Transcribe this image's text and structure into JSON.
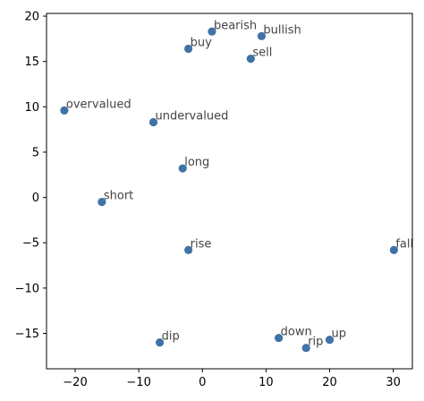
{
  "chart_data": {
    "type": "scatter",
    "title": "",
    "xlabel": "",
    "ylabel": "",
    "xlim": [
      -24.5,
      33
    ],
    "ylim": [
      -18.9,
      20.3
    ],
    "grid": false,
    "marker_color": "#3f73a6",
    "label_color": "#444444",
    "xticks": [
      {
        "value": -20,
        "label": "−20"
      },
      {
        "value": -10,
        "label": "−10"
      },
      {
        "value": 0,
        "label": "0"
      },
      {
        "value": 10,
        "label": "10"
      },
      {
        "value": 20,
        "label": "20"
      },
      {
        "value": 30,
        "label": "30"
      }
    ],
    "yticks": [
      {
        "value": 20,
        "label": "20"
      },
      {
        "value": 15,
        "label": "15"
      },
      {
        "value": 10,
        "label": "10"
      },
      {
        "value": 5,
        "label": "5"
      },
      {
        "value": 0,
        "label": "0"
      },
      {
        "value": -5,
        "label": "−5"
      },
      {
        "value": -10,
        "label": "−10"
      },
      {
        "value": -15,
        "label": "−15"
      }
    ],
    "points": [
      {
        "label": "bearish",
        "x": 1.5,
        "y": 18.3
      },
      {
        "label": "bullish",
        "x": 9.3,
        "y": 17.8
      },
      {
        "label": "buy",
        "x": -2.2,
        "y": 16.4
      },
      {
        "label": "sell",
        "x": 7.6,
        "y": 15.3
      },
      {
        "label": "overvalued",
        "x": -21.7,
        "y": 9.6
      },
      {
        "label": "undervalued",
        "x": -7.7,
        "y": 8.3
      },
      {
        "label": "long",
        "x": -3.1,
        "y": 3.2
      },
      {
        "label": "short",
        "x": -15.8,
        "y": -0.5
      },
      {
        "label": "rise",
        "x": -2.2,
        "y": -5.8
      },
      {
        "label": "fall",
        "x": 30.1,
        "y": -5.8
      },
      {
        "label": "dip",
        "x": -6.7,
        "y": -16.0
      },
      {
        "label": "down",
        "x": 12.0,
        "y": -15.5
      },
      {
        "label": "up",
        "x": 20.0,
        "y": -15.7
      },
      {
        "label": "rip",
        "x": 16.3,
        "y": -16.6
      }
    ]
  }
}
